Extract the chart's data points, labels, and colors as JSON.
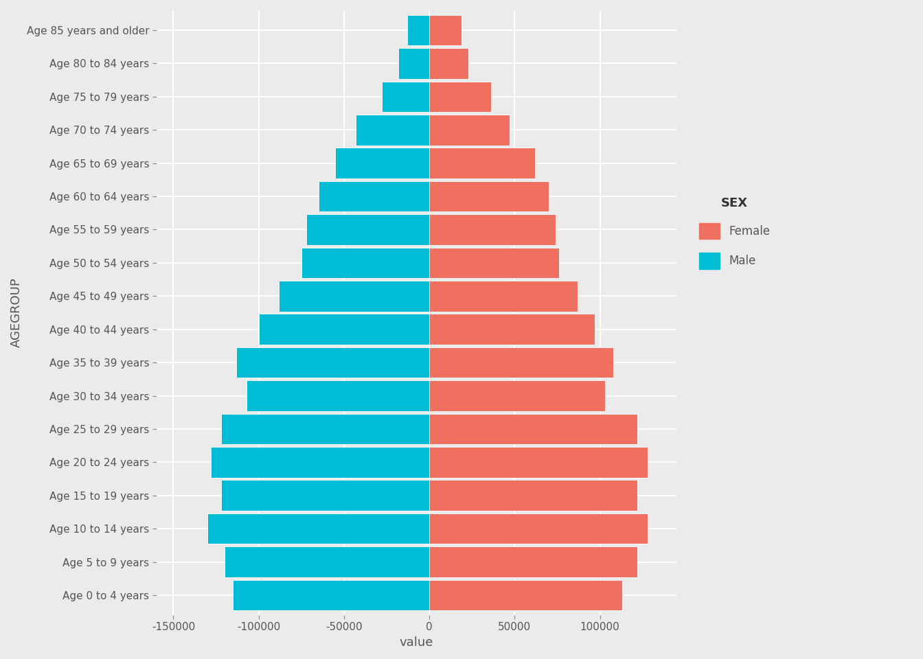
{
  "age_groups": [
    "Age 0 to 4 years",
    "Age 5 to 9 years",
    "Age 10 to 14 years",
    "Age 15 to 19 years",
    "Age 20 to 24 years",
    "Age 25 to 29 years",
    "Age 30 to 34 years",
    "Age 35 to 39 years",
    "Age 40 to 44 years",
    "Age 45 to 49 years",
    "Age 50 to 54 years",
    "Age 55 to 59 years",
    "Age 60 to 64 years",
    "Age 65 to 69 years",
    "Age 70 to 74 years",
    "Age 75 to 79 years",
    "Age 80 to 84 years",
    "Age 85 years and older"
  ],
  "male_values": [
    -115000,
    -120000,
    -130000,
    -122000,
    -128000,
    -122000,
    -107000,
    -113000,
    -100000,
    -88000,
    -75000,
    -72000,
    -65000,
    -55000,
    -43000,
    -28000,
    -18000,
    -13000
  ],
  "female_values": [
    113000,
    122000,
    128000,
    122000,
    128000,
    122000,
    103000,
    108000,
    97000,
    87000,
    76000,
    74000,
    70000,
    62000,
    47000,
    36000,
    23000,
    19000
  ],
  "male_color": "#00BCD4",
  "female_color": "#F07060",
  "background_color": "#EBEBEB",
  "grid_color": "#FFFFFF",
  "xlabel": "value",
  "ylabel": "AGEGROUP",
  "legend_title": "SEX",
  "legend_female": "Female",
  "legend_male": "Male",
  "xlim": [
    -160000,
    145000
  ],
  "xticks": [
    -150000,
    -100000,
    -50000,
    0,
    50000,
    100000
  ],
  "axis_label_fontsize": 13,
  "tick_fontsize": 11,
  "legend_fontsize": 12,
  "bar_height": 0.92
}
